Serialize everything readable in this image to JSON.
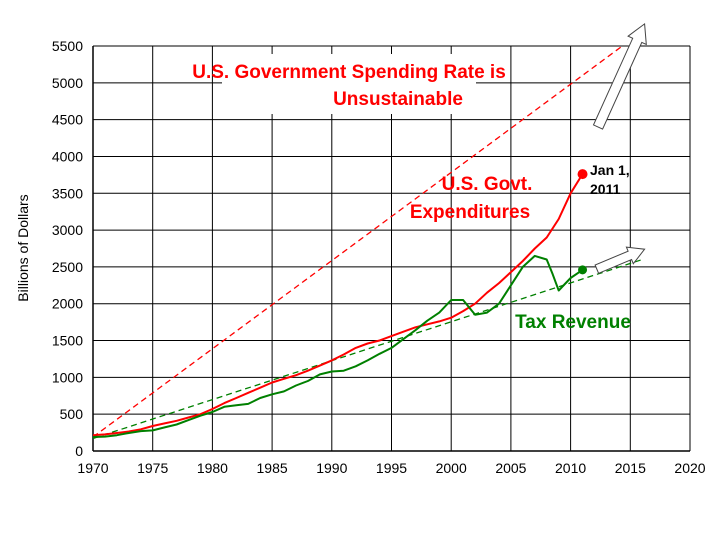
{
  "chart_data": {
    "type": "line",
    "title": "U.S. Government Spending Rate is Unsustainable",
    "xlabel": "",
    "ylabel": "Billions of Dollars",
    "xlim": [
      1970,
      2020
    ],
    "ylim": [
      0,
      5500
    ],
    "x_ticks": [
      1970,
      1975,
      1980,
      1985,
      1990,
      1995,
      2000,
      2005,
      2010,
      2015,
      2020
    ],
    "y_ticks": [
      0,
      500,
      1000,
      1500,
      2000,
      2500,
      3000,
      3500,
      4000,
      4500,
      5000,
      5500
    ],
    "grid": "vertical-and-horizontal",
    "colors": {
      "expenditures": "#ff0000",
      "revenue": "#008000",
      "title": "#ff0000"
    },
    "series": [
      {
        "name": "U.S. Govt. Expenditures",
        "color": "#ff0000",
        "x": [
          1970,
          1971,
          1972,
          1973,
          1974,
          1975,
          1976,
          1977,
          1978,
          1979,
          1980,
          1981,
          1982,
          1983,
          1984,
          1985,
          1986,
          1987,
          1988,
          1989,
          1990,
          1991,
          1992,
          1993,
          1994,
          1995,
          1996,
          1997,
          1998,
          1999,
          2000,
          2001,
          2002,
          2003,
          2004,
          2005,
          2006,
          2007,
          2008,
          2009,
          2010,
          2011
        ],
        "y": [
          215,
          225,
          245,
          265,
          295,
          340,
          375,
          410,
          455,
          500,
          570,
          650,
          720,
          790,
          860,
          930,
          980,
          1030,
          1090,
          1160,
          1230,
          1310,
          1400,
          1460,
          1500,
          1560,
          1620,
          1680,
          1720,
          1760,
          1810,
          1900,
          2000,
          2150,
          2280,
          2430,
          2580,
          2750,
          2900,
          3150,
          3500,
          3760
        ]
      },
      {
        "name": "Tax Revenue",
        "color": "#008000",
        "x": [
          1970,
          1971,
          1972,
          1973,
          1974,
          1975,
          1976,
          1977,
          1978,
          1979,
          1980,
          1981,
          1982,
          1983,
          1984,
          1985,
          1986,
          1987,
          1988,
          1989,
          1990,
          1991,
          1992,
          1993,
          1994,
          1995,
          1996,
          1997,
          1998,
          1999,
          2000,
          2001,
          2002,
          2003,
          2004,
          2005,
          2006,
          2007,
          2008,
          2008.5,
          2009,
          2010,
          2011
        ],
        "y": [
          190,
          195,
          215,
          245,
          270,
          280,
          320,
          360,
          420,
          480,
          530,
          600,
          620,
          640,
          720,
          770,
          810,
          890,
          950,
          1040,
          1080,
          1090,
          1150,
          1230,
          1320,
          1400,
          1520,
          1640,
          1770,
          1880,
          2050,
          2050,
          1850,
          1880,
          2000,
          2250,
          2500,
          2650,
          2600,
          2400,
          2180,
          2350,
          2460
        ]
      }
    ],
    "trend_lines": [
      {
        "name": "expenditures-trend",
        "color": "#ff0000",
        "x": [
          1970,
          2016
        ],
        "y": [
          190,
          5700
        ]
      },
      {
        "name": "revenue-trend",
        "color": "#008000",
        "x": [
          1970,
          2016
        ],
        "y": [
          170,
          2600
        ]
      }
    ],
    "markers": [
      {
        "series": "U.S. Govt. Expenditures",
        "x": 2011,
        "y": 3760
      },
      {
        "series": "Tax Revenue",
        "x": 2011,
        "y": 2460
      }
    ],
    "annotations": {
      "title_line1": "U.S. Government Spending Rate is",
      "title_line2": "Unsustainable",
      "exp_line1": "U.S. Govt.",
      "exp_line2": "Expenditures",
      "rev_label": "Tax Revenue",
      "date_line1": "Jan 1,",
      "date_line2": "2011"
    }
  }
}
